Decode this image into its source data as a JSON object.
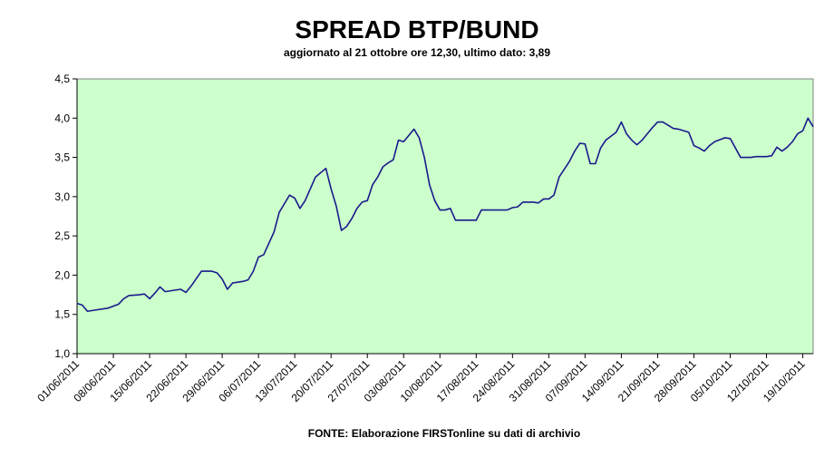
{
  "chart_data": {
    "type": "line",
    "title": "SPREAD BTP/BUND",
    "subtitle": "aggiornato al 21 ottobre ore 12,30, ultimo dato: 3,89",
    "source": "FONTE: Elaborazione FIRSTonline su dati di archivio",
    "background": "#ccffcc",
    "xlim": [
      "01/06/2011",
      "21/10/2011"
    ],
    "xticks": [
      "01/06/2011",
      "08/06/2011",
      "15/06/2011",
      "22/06/2011",
      "29/06/2011",
      "06/07/2011",
      "13/07/2011",
      "20/07/2011",
      "27/07/2011",
      "03/08/2011",
      "10/08/2011",
      "17/08/2011",
      "24/08/2011",
      "31/08/2011",
      "07/09/2011",
      "14/09/2011",
      "21/09/2011",
      "28/09/2011",
      "05/10/2011",
      "12/10/2011",
      "19/10/2011"
    ],
    "ylim": [
      1,
      4.5
    ],
    "yticks": [
      {
        "value": 1,
        "label": "1,0"
      },
      {
        "value": 1.5,
        "label": "1,5"
      },
      {
        "value": 2,
        "label": "2,0"
      },
      {
        "value": 2.5,
        "label": "2,5"
      },
      {
        "value": 3,
        "label": "3,0"
      },
      {
        "value": 3.5,
        "label": "3,5"
      },
      {
        "value": 4,
        "label": "4,0"
      },
      {
        "value": 4.5,
        "label": "4,5"
      }
    ],
    "x": [
      "01/06/2011",
      "02/06/2011",
      "03/06/2011",
      "05/06/2011",
      "07/06/2011",
      "09/06/2011",
      "10/06/2011",
      "11/06/2011",
      "13/06/2011",
      "14/06/2011",
      "15/06/2011",
      "16/06/2011",
      "17/06/2011",
      "18/06/2011",
      "20/06/2011",
      "21/06/2011",
      "22/06/2011",
      "23/06/2011",
      "25/06/2011",
      "27/06/2011",
      "28/06/2011",
      "29/06/2011",
      "30/06/2011",
      "01/07/2011",
      "03/07/2011",
      "04/07/2011",
      "05/07/2011",
      "06/07/2011",
      "07/07/2011",
      "09/07/2011",
      "10/07/2011",
      "12/07/2011",
      "13/07/2011",
      "14/07/2011",
      "15/07/2011",
      "16/07/2011",
      "17/07/2011",
      "19/07/2011",
      "20/07/2011",
      "21/07/2011",
      "22/07/2011",
      "23/07/2011",
      "24/07/2011",
      "25/07/2011",
      "26/07/2011",
      "27/07/2011",
      "28/07/2011",
      "29/07/2011",
      "30/07/2011",
      "31/07/2011",
      "01/08/2011",
      "02/08/2011",
      "03/08/2011",
      "04/08/2011",
      "05/08/2011",
      "06/08/2011",
      "07/08/2011",
      "08/08/2011",
      "09/08/2011",
      "10/08/2011",
      "11/08/2011",
      "12/08/2011",
      "13/08/2011",
      "15/08/2011",
      "17/08/2011",
      "18/08/2011",
      "21/08/2011",
      "23/08/2011",
      "24/08/2011",
      "25/08/2011",
      "26/08/2011",
      "28/08/2011",
      "29/08/2011",
      "30/08/2011",
      "31/08/2011",
      "01/09/2011",
      "02/09/2011",
      "04/09/2011",
      "05/09/2011",
      "06/09/2011",
      "07/09/2011",
      "08/09/2011",
      "09/09/2011",
      "10/09/2011",
      "11/09/2011",
      "13/09/2011",
      "14/09/2011",
      "15/09/2011",
      "16/09/2011",
      "17/09/2011",
      "18/09/2011",
      "19/09/2011",
      "20/09/2011",
      "21/09/2011",
      "22/09/2011",
      "24/09/2011",
      "25/09/2011",
      "26/09/2011",
      "27/09/2011",
      "28/09/2011",
      "29/09/2011",
      "30/09/2011",
      "01/10/2011",
      "02/10/2011",
      "04/10/2011",
      "05/10/2011",
      "06/10/2011",
      "07/10/2011",
      "09/10/2011",
      "10/10/2011",
      "12/10/2011",
      "13/10/2011",
      "14/10/2011",
      "15/10/2011",
      "16/10/2011",
      "17/10/2011",
      "18/10/2011",
      "19/10/2011",
      "20/10/2011",
      "21/10/2011"
    ],
    "series": [
      {
        "name": "Spread",
        "color": "#1a1a8c",
        "values": [
          1.64,
          1.62,
          1.54,
          1.56,
          1.58,
          1.63,
          1.7,
          1.74,
          1.75,
          1.76,
          1.7,
          1.77,
          1.85,
          1.79,
          1.81,
          1.82,
          1.78,
          1.86,
          2.05,
          2.05,
          2.03,
          1.95,
          1.82,
          1.9,
          1.92,
          1.94,
          2.05,
          2.23,
          2.26,
          2.55,
          2.8,
          3.02,
          2.98,
          2.85,
          2.95,
          3.1,
          3.25,
          3.36,
          3.1,
          2.88,
          2.57,
          2.62,
          2.72,
          2.85,
          2.93,
          2.95,
          3.15,
          3.25,
          3.38,
          3.43,
          3.47,
          3.72,
          3.7,
          3.78,
          3.86,
          3.75,
          3.5,
          3.15,
          2.95,
          2.83,
          2.83,
          2.85,
          2.7,
          2.7,
          2.7,
          2.83,
          2.83,
          2.83,
          2.86,
          2.87,
          2.93,
          2.93,
          2.92,
          2.97,
          2.97,
          3.02,
          3.25,
          3.45,
          3.58,
          3.68,
          3.67,
          3.42,
          3.42,
          3.62,
          3.72,
          3.82,
          3.95,
          3.8,
          3.72,
          3.66,
          3.72,
          3.8,
          3.88,
          3.95,
          3.95,
          3.87,
          3.86,
          3.84,
          3.82,
          3.65,
          3.62,
          3.58,
          3.65,
          3.7,
          3.75,
          3.74,
          3.62,
          3.5,
          3.5,
          3.51,
          3.51,
          3.52,
          3.63,
          3.58,
          3.63,
          3.7,
          3.8,
          3.84,
          4.0,
          3.89
        ]
      }
    ]
  }
}
